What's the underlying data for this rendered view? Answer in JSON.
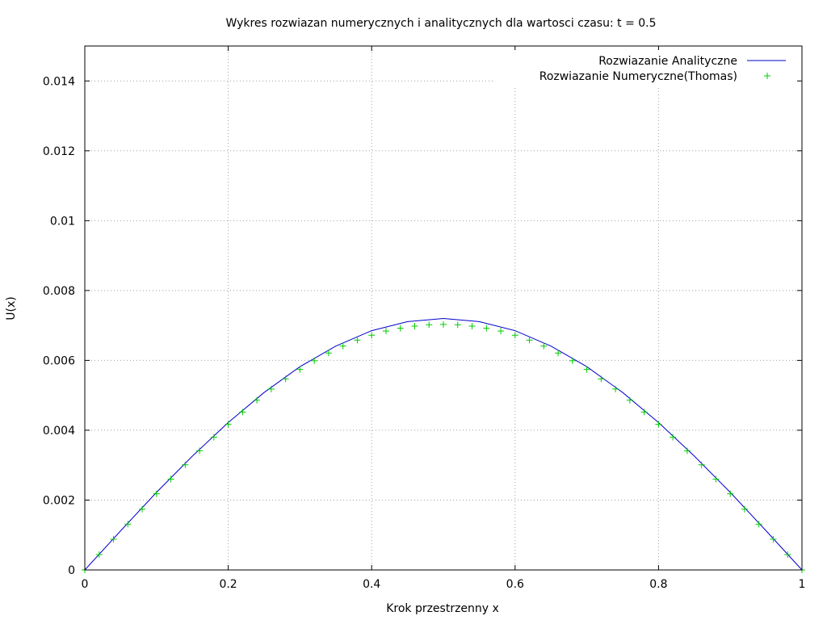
{
  "chart_data": {
    "type": "line",
    "title": "Wykres rozwiazan numerycznych i analitycznych dla wartosci czasu: t = 0.5",
    "xlabel": "Krok przestrzenny x",
    "ylabel": "U(x)",
    "xlim": [
      0,
      1
    ],
    "ylim": [
      0,
      0.015
    ],
    "xticks": [
      0,
      0.2,
      0.4,
      0.6,
      0.8,
      1
    ],
    "xtick_labels": [
      "0",
      "0.2",
      "0.4",
      "0.6",
      "0.8",
      "1"
    ],
    "yticks": [
      0,
      0.002,
      0.004,
      0.006,
      0.008,
      0.01,
      0.012,
      0.014
    ],
    "ytick_labels": [
      "0",
      "0.002",
      "0.004",
      "0.006",
      "0.008",
      "0.01",
      "0.012",
      "0.014"
    ],
    "grid": true,
    "legend_position": "top-right",
    "series": [
      {
        "name": "Rozwiazanie Analityczne",
        "style": "line",
        "color": "#0000cc",
        "x": [
          0,
          0.05,
          0.1,
          0.15,
          0.2,
          0.25,
          0.3,
          0.35,
          0.4,
          0.45,
          0.5,
          0.55,
          0.6,
          0.65,
          0.7,
          0.75,
          0.8,
          0.85,
          0.9,
          0.95,
          1
        ],
        "values": [
          0,
          0.00112,
          0.00222,
          0.00326,
          0.00422,
          0.00508,
          0.00582,
          0.00641,
          0.00685,
          0.00711,
          0.0072,
          0.00711,
          0.00685,
          0.00641,
          0.00582,
          0.00508,
          0.00422,
          0.00326,
          0.00222,
          0.00112,
          0
        ]
      },
      {
        "name": "Rozwiazanie Numeryczne(Thomas)",
        "style": "points",
        "marker": "+",
        "color": "#00cc00",
        "x": [
          0,
          0.02,
          0.04,
          0.06,
          0.08,
          0.1,
          0.12,
          0.14,
          0.16,
          0.18,
          0.2,
          0.22,
          0.24,
          0.26,
          0.28,
          0.3,
          0.32,
          0.34,
          0.36,
          0.38,
          0.4,
          0.42,
          0.44,
          0.46,
          0.48,
          0.5,
          0.52,
          0.54,
          0.56,
          0.58,
          0.6,
          0.62,
          0.64,
          0.66,
          0.68,
          0.7,
          0.72,
          0.74,
          0.76,
          0.78,
          0.8,
          0.82,
          0.84,
          0.86,
          0.88,
          0.9,
          0.92,
          0.94,
          0.96,
          0.98,
          1
        ],
        "values": [
          0,
          0.00044,
          0.00088,
          0.00131,
          0.00174,
          0.00218,
          0.0026,
          0.00301,
          0.00341,
          0.0038,
          0.00417,
          0.00452,
          0.00486,
          0.00518,
          0.00547,
          0.00574,
          0.00599,
          0.00621,
          0.00641,
          0.00658,
          0.00672,
          0.00684,
          0.00692,
          0.00698,
          0.00702,
          0.00703,
          0.00702,
          0.00698,
          0.00692,
          0.00684,
          0.00672,
          0.00658,
          0.00641,
          0.00621,
          0.00599,
          0.00574,
          0.00547,
          0.00518,
          0.00486,
          0.00452,
          0.00417,
          0.0038,
          0.00341,
          0.00301,
          0.0026,
          0.00218,
          0.00174,
          0.00131,
          0.00088,
          0.00044,
          0
        ]
      }
    ]
  }
}
